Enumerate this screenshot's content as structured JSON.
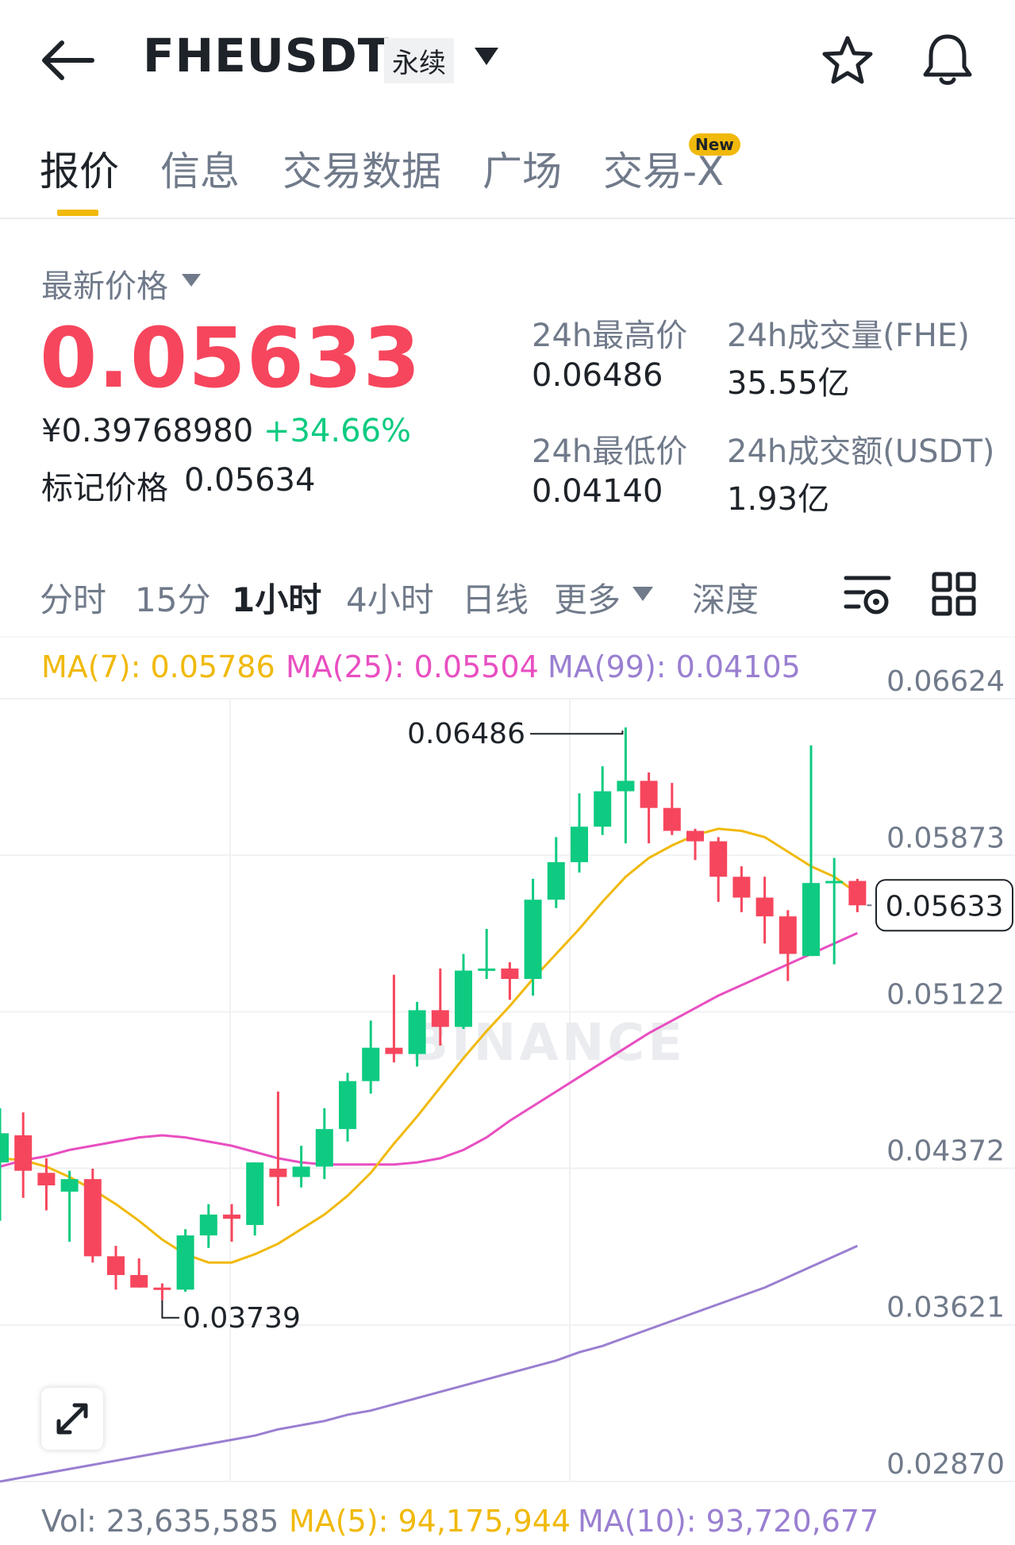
{
  "header": {
    "symbol": "FHEUSDT",
    "contract_type": "永续",
    "icons": [
      "back-arrow-icon",
      "caret-down-icon",
      "star-icon",
      "bell-icon"
    ]
  },
  "tabs": [
    {
      "label": "报价",
      "active": true
    },
    {
      "label": "信息",
      "active": false
    },
    {
      "label": "交易数据",
      "active": false
    },
    {
      "label": "广场",
      "active": false
    },
    {
      "label": "交易-X",
      "active": false,
      "badge": "New"
    }
  ],
  "price": {
    "latest_label": "最新价格",
    "latest": "0.05633",
    "cny": "¥0.39768980",
    "change_pct": "+34.66%",
    "mark_label": "标记价格",
    "mark_price": "0.05634"
  },
  "stats": {
    "high_label": "24h最高价",
    "high": "0.06486",
    "low_label": "24h最低价",
    "low": "0.04140",
    "vol_label": "24h成交量(FHE)",
    "vol": "35.55亿",
    "amount_label": "24h成交额(USDT)",
    "amount": "1.93亿"
  },
  "intervals": [
    {
      "label": "分时",
      "active": false
    },
    {
      "label": "15分",
      "active": false
    },
    {
      "label": "1小时",
      "active": true
    },
    {
      "label": "4小时",
      "active": false
    },
    {
      "label": "日线",
      "active": false
    },
    {
      "label": "更多",
      "active": false
    },
    {
      "label": "深度",
      "active": false
    }
  ],
  "ma": {
    "ma7": "MA(7): 0.05786",
    "ma25": "MA(25): 0.05504",
    "ma99": "MA(99): 0.04105"
  },
  "volume": {
    "vol": "Vol: 23,635,585",
    "ma5": "MA(5): 94,175,944",
    "ma10": "MA(10): 93,720,677"
  },
  "colors": {
    "up": "#0ecb81",
    "down": "#f6465d",
    "accent": "#f0b90b",
    "ma7": "#f0b90b",
    "ma25": "#e84fc1",
    "ma99": "#9a7fd1"
  },
  "chart_data": {
    "type": "candlestick",
    "watermark": "BINANCE",
    "y_ticks": [
      "0.06624",
      "0.05873",
      "0.05122",
      "0.04372",
      "0.03621",
      "0.02870"
    ],
    "ylim": [
      0.0287,
      0.06624
    ],
    "high_label": "0.06486",
    "low_label": "0.03739",
    "last_price_label": "0.05633",
    "candles": [
      {
        "o": 0.044,
        "h": 0.0466,
        "l": 0.0412,
        "c": 0.0454
      },
      {
        "o": 0.0453,
        "h": 0.0464,
        "l": 0.0423,
        "c": 0.0436
      },
      {
        "o": 0.0435,
        "h": 0.0442,
        "l": 0.0417,
        "c": 0.0429
      },
      {
        "o": 0.0426,
        "h": 0.0436,
        "l": 0.0402,
        "c": 0.0432
      },
      {
        "o": 0.0432,
        "h": 0.0437,
        "l": 0.0392,
        "c": 0.0395
      },
      {
        "o": 0.0395,
        "h": 0.04,
        "l": 0.0379,
        "c": 0.0386
      },
      {
        "o": 0.0386,
        "h": 0.0394,
        "l": 0.038,
        "c": 0.038
      },
      {
        "o": 0.038,
        "h": 0.0382,
        "l": 0.03739,
        "c": 0.0379
      },
      {
        "o": 0.0379,
        "h": 0.0408,
        "l": 0.0378,
        "c": 0.0405
      },
      {
        "o": 0.0405,
        "h": 0.042,
        "l": 0.0399,
        "c": 0.0415
      },
      {
        "o": 0.0415,
        "h": 0.042,
        "l": 0.0402,
        "c": 0.0413
      },
      {
        "o": 0.041,
        "h": 0.044,
        "l": 0.0405,
        "c": 0.044
      },
      {
        "o": 0.0437,
        "h": 0.0474,
        "l": 0.0419,
        "c": 0.0433
      },
      {
        "o": 0.0433,
        "h": 0.0448,
        "l": 0.0428,
        "c": 0.0438
      },
      {
        "o": 0.0438,
        "h": 0.0466,
        "l": 0.0432,
        "c": 0.0456
      },
      {
        "o": 0.0456,
        "h": 0.0483,
        "l": 0.045,
        "c": 0.0479
      },
      {
        "o": 0.0479,
        "h": 0.0508,
        "l": 0.0473,
        "c": 0.0495
      },
      {
        "o": 0.0495,
        "h": 0.053,
        "l": 0.0488,
        "c": 0.0492
      },
      {
        "o": 0.0492,
        "h": 0.0517,
        "l": 0.0486,
        "c": 0.0513
      },
      {
        "o": 0.0513,
        "h": 0.0533,
        "l": 0.0496,
        "c": 0.0505
      },
      {
        "o": 0.0505,
        "h": 0.054,
        "l": 0.0504,
        "c": 0.0532
      },
      {
        "o": 0.0532,
        "h": 0.0552,
        "l": 0.0528,
        "c": 0.0533
      },
      {
        "o": 0.0533,
        "h": 0.0536,
        "l": 0.0518,
        "c": 0.0528
      },
      {
        "o": 0.0528,
        "h": 0.0576,
        "l": 0.052,
        "c": 0.0566
      },
      {
        "o": 0.0566,
        "h": 0.0596,
        "l": 0.0562,
        "c": 0.0584
      },
      {
        "o": 0.0584,
        "h": 0.0617,
        "l": 0.0579,
        "c": 0.0601
      },
      {
        "o": 0.0601,
        "h": 0.063,
        "l": 0.0597,
        "c": 0.0618
      },
      {
        "o": 0.0618,
        "h": 0.06486,
        "l": 0.0593,
        "c": 0.0623
      },
      {
        "o": 0.0623,
        "h": 0.0627,
        "l": 0.0593,
        "c": 0.061
      },
      {
        "o": 0.061,
        "h": 0.0622,
        "l": 0.0597,
        "c": 0.0599
      },
      {
        "o": 0.0599,
        "h": 0.06,
        "l": 0.0585,
        "c": 0.0594
      },
      {
        "o": 0.0594,
        "h": 0.0596,
        "l": 0.0565,
        "c": 0.0577
      },
      {
        "o": 0.0577,
        "h": 0.0582,
        "l": 0.056,
        "c": 0.0567
      },
      {
        "o": 0.0567,
        "h": 0.0577,
        "l": 0.0545,
        "c": 0.0558
      },
      {
        "o": 0.0558,
        "h": 0.0561,
        "l": 0.0527,
        "c": 0.054
      },
      {
        "o": 0.0539,
        "h": 0.064,
        "l": 0.0539,
        "c": 0.0574
      },
      {
        "o": 0.0575,
        "h": 0.0586,
        "l": 0.0535,
        "c": 0.0575
      },
      {
        "o": 0.0575,
        "h": 0.0576,
        "l": 0.056,
        "c": 0.05633
      }
    ],
    "ma7_series": [
      0.0442,
      0.0441,
      0.0438,
      0.0433,
      0.0427,
      0.042,
      0.0412,
      0.0403,
      0.0396,
      0.0392,
      0.0392,
      0.0396,
      0.0401,
      0.0408,
      0.0415,
      0.0424,
      0.0435,
      0.0449,
      0.0462,
      0.0476,
      0.049,
      0.0503,
      0.0515,
      0.0528,
      0.054,
      0.0552,
      0.0565,
      0.0577,
      0.0586,
      0.0592,
      0.0597,
      0.06,
      0.0599,
      0.0596,
      0.0589,
      0.0582,
      0.0577,
      0.0569
    ],
    "ma25_series": [
      0.0438,
      0.0441,
      0.0443,
      0.0446,
      0.0448,
      0.045,
      0.0452,
      0.0453,
      0.0452,
      0.045,
      0.0448,
      0.0445,
      0.0442,
      0.044,
      0.0439,
      0.0439,
      0.0439,
      0.0439,
      0.044,
      0.0442,
      0.0446,
      0.0452,
      0.046,
      0.0467,
      0.0474,
      0.0481,
      0.0488,
      0.0495,
      0.0502,
      0.0508,
      0.0514,
      0.052,
      0.0525,
      0.053,
      0.0535,
      0.054,
      0.0545,
      0.055
    ],
    "ma99_series": [
      0.0287,
      0.0289,
      0.0291,
      0.0293,
      0.0295,
      0.0297,
      0.0299,
      0.0301,
      0.0303,
      0.0305,
      0.0307,
      0.0309,
      0.0312,
      0.0314,
      0.0316,
      0.0319,
      0.0321,
      0.0324,
      0.0327,
      0.033,
      0.0333,
      0.0336,
      0.0339,
      0.0342,
      0.0345,
      0.0349,
      0.0352,
      0.0356,
      0.036,
      0.0364,
      0.0368,
      0.0372,
      0.0376,
      0.038,
      0.0385,
      0.039,
      0.0395,
      0.04
    ]
  }
}
